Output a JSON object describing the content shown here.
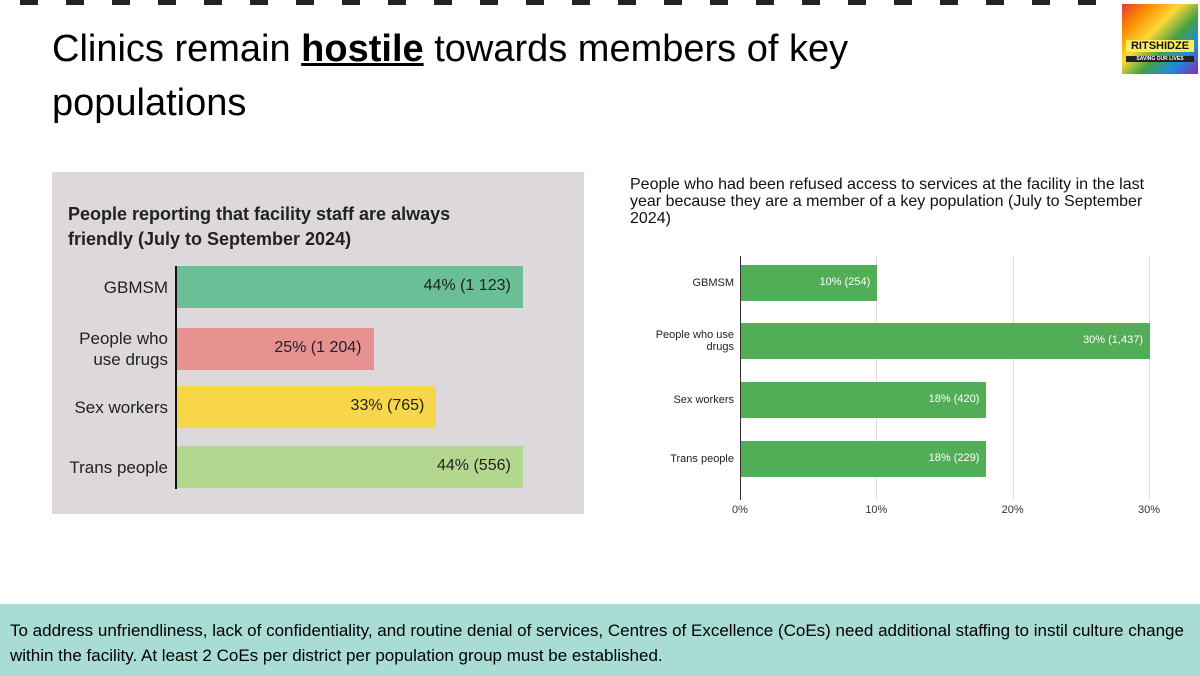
{
  "title": {
    "parts": [
      "Clinics remain ",
      "hostile",
      " towards members of key populations"
    ]
  },
  "logo": {
    "name": "RITSHIDZE",
    "tagline": "SAVING OUR LIVES"
  },
  "chart_data": [
    {
      "type": "bar",
      "orientation": "horizontal",
      "title": "People reporting that facility staff are always friendly (July to September 2024)",
      "categories": [
        "GBMSM",
        "People who use drugs",
        "Sex workers",
        "Trans people"
      ],
      "values": [
        44,
        25,
        33,
        44
      ],
      "value_labels": [
        "44% (1 123)",
        "25% (1 204)",
        "33% (765)",
        "44% (556)"
      ],
      "colors": [
        "#6bbf96",
        "#e79191",
        "#f8d64a",
        "#b3d78f"
      ]
    },
    {
      "type": "bar",
      "orientation": "horizontal",
      "title": "People who had been refused access to services at the facility in the last year because they are a member of a key population (July to September 2024)",
      "categories": [
        "GBMSM",
        "People who use drugs",
        "Sex workers",
        "Trans people"
      ],
      "values": [
        10,
        30,
        18,
        18
      ],
      "value_labels": [
        "10% (254)",
        "30% (1,437)",
        "18% (420)",
        "18% (229)"
      ],
      "color": "#52ad57",
      "xlim": [
        0,
        30
      ],
      "xticks": [
        {
          "value": 0,
          "label": "0%"
        },
        {
          "value": 10,
          "label": "10%"
        },
        {
          "value": 20,
          "label": "20%"
        },
        {
          "value": 30,
          "label": "30%"
        }
      ],
      "grid": true
    }
  ],
  "footer": {
    "text": "To address unfriendliness, lack of confidentiality, and routine denial of services, Centres of Excellence (CoEs) need additional staffing to instil culture change within the facility. At least 2 CoEs per district per population group must be established."
  }
}
